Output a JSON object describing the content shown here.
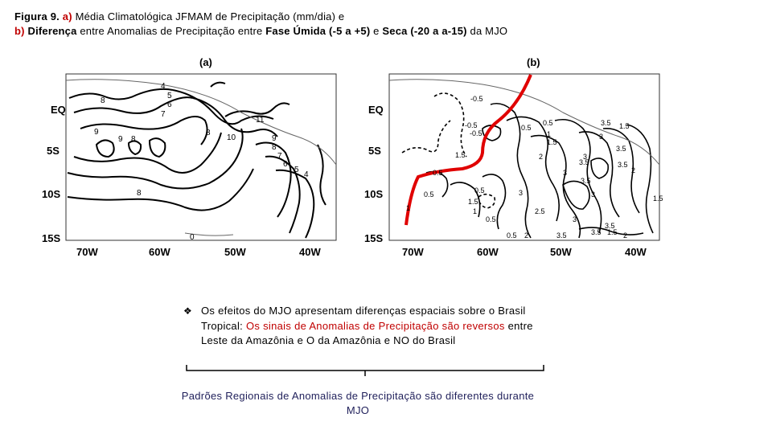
{
  "caption": {
    "fig_label": "Figura 9.",
    "a_label": "a)",
    "line1_text": "Média Climatológica JFMAM de Precipitação (mm/dia) e",
    "b_label": "b)",
    "b_word": "Diferença",
    "line2_text1": "entre Anomalias de Precipitação entre",
    "fase_umida": "Fase Úmida (-5 a +5)",
    "and_word": "e",
    "seca": "Seca (-20 a a-15)",
    "line2_text2": "da MJO"
  },
  "map_a": {
    "panel_label": "(a)",
    "y_ticks": [
      "EQ",
      "5S",
      "10S",
      "15S"
    ],
    "x_ticks": [
      "70W",
      "60W",
      "50W",
      "40W"
    ],
    "contour_labels": [
      "4",
      "5",
      "6",
      "7",
      "8",
      "8",
      "9",
      "9",
      "8",
      "10",
      "11",
      "9",
      "8",
      "7",
      "6",
      "5",
      "4",
      "8",
      "0"
    ]
  },
  "map_b": {
    "panel_label": "(b)",
    "y_ticks": [
      "EQ",
      "5S",
      "10S",
      "15S"
    ],
    "x_ticks": [
      "70W",
      "60W",
      "50W",
      "40W"
    ],
    "contour_labels": [
      "-0.5",
      "-0.5",
      "0.5",
      "0.5",
      "0.5",
      "1",
      "1.5",
      "-0.5",
      "0.5",
      "0.5",
      "1.5",
      "1",
      "0.5",
      "2",
      "3",
      "3",
      "3",
      "3.5",
      "3.5",
      "3.5",
      "1.5",
      "2.5",
      "3",
      "3.5",
      "3",
      "3",
      "1.5",
      "2",
      "0.5",
      "1.5",
      "2",
      "3.5",
      "3.5",
      "1.5",
      "2",
      "3.5",
      "3.5",
      "1"
    ]
  },
  "bullet": {
    "marker": "❖",
    "text1": "Os efeitos do MJO apresentam diferenças espaciais sobre o Brasil Tropical:",
    "red_text": "Os sinais de Anomalias de Precipitação são reversos",
    "text2": "entre Leste da Amazônia e O da Amazônia e NO do Brasil"
  },
  "conclusion": "Padrões Regionais de Anomalias de Precipitação são diferentes durante MJO",
  "colors": {
    "accent_red": "#c00000",
    "conclusion_text": "#1f1f5a",
    "divider_line": "#e00000"
  }
}
